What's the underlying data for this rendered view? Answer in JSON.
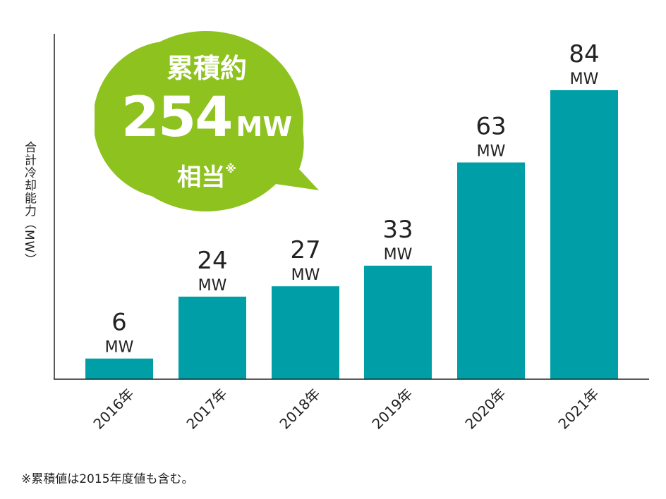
{
  "chart_data": {
    "type": "bar",
    "categories": [
      "2016年",
      "2017年",
      "2018年",
      "2019年",
      "2020年",
      "2021年"
    ],
    "values": [
      6,
      24,
      27,
      33,
      63,
      84
    ],
    "value_labels": [
      "6",
      "24",
      "27",
      "33",
      "63",
      "84"
    ],
    "unit_label": "MW",
    "ylabel": "合計冷却能力（MW）",
    "xlabel": "",
    "ylim": [
      0,
      90
    ],
    "grid": false,
    "colors": {
      "bar": "#009FA8",
      "callout": "#8DC21F",
      "axis": "#222222"
    }
  },
  "callout": {
    "line1": "累積約",
    "value": "254",
    "unit": "MW",
    "line3": "相当",
    "mark": "※"
  },
  "footnote": "※累積値は2015年度値も含む。"
}
